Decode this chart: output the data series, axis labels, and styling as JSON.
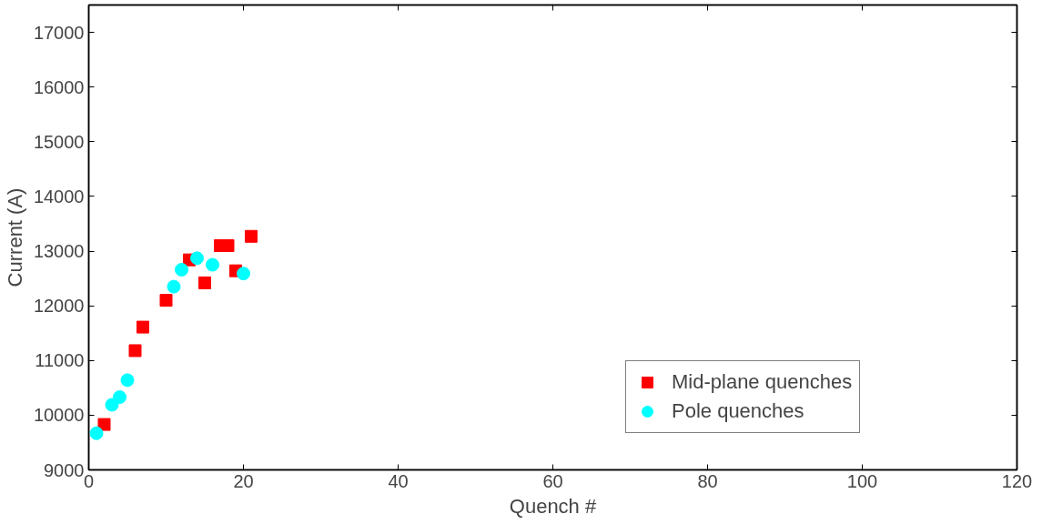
{
  "chart_data": {
    "type": "scatter",
    "xlabel": "Quench #",
    "ylabel": "Current (A)",
    "xlim": [
      0,
      120
    ],
    "xticks": [
      0,
      20,
      40,
      60,
      80,
      100,
      120
    ],
    "ylim": [
      9000,
      17500
    ],
    "yticks": [
      9000,
      10000,
      11000,
      12000,
      13000,
      14000,
      15000,
      16000,
      17000
    ],
    "grid": false,
    "legend": "bottom right",
    "series": [
      {
        "name": "Mid-plane quenches",
        "color": "#ff0000",
        "marker": "square",
        "x": [
          2,
          6,
          7,
          10,
          13,
          15,
          17,
          18,
          19,
          21
        ],
        "values": [
          9830,
          11180,
          11610,
          12100,
          12840,
          12420,
          13100,
          13100,
          12640,
          13270
        ]
      },
      {
        "name": "Pole quenches",
        "color": "#00ffff",
        "marker": "circle",
        "x": [
          1,
          3,
          4,
          5,
          11,
          12,
          14,
          16,
          20
        ],
        "values": [
          9670,
          10190,
          10330,
          10640,
          12350,
          12660,
          12870,
          12750,
          12590
        ]
      }
    ]
  }
}
